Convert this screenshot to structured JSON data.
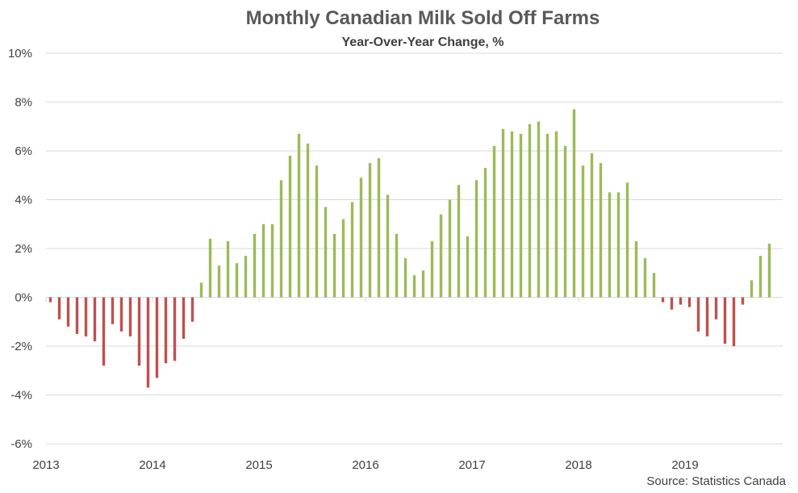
{
  "colors": {
    "positive": "#9BBB59",
    "negative": "#C0504D",
    "grid": "#D9D9D9",
    "text": "#404040"
  },
  "source": "Source: Statistics Canada",
  "chart_data": {
    "type": "bar",
    "title": "Monthly Canadian Milk Sold Off Farms",
    "subtitle": "Year-Over-Year Change, %",
    "xlabel": "",
    "ylabel": "",
    "ylim": [
      -6,
      10
    ],
    "y_ticks": [
      -6,
      -4,
      -2,
      0,
      2,
      4,
      6,
      8,
      10
    ],
    "y_tick_labels": [
      "-6%",
      "-4%",
      "-2%",
      "0%",
      "2%",
      "4%",
      "6%",
      "8%",
      "10%"
    ],
    "x_tick_labels": [
      "2013",
      "2014",
      "2015",
      "2016",
      "2017",
      "2018",
      "2019"
    ],
    "grid": true,
    "legend": "none",
    "categories": [
      "2013-01",
      "2013-02",
      "2013-03",
      "2013-04",
      "2013-05",
      "2013-06",
      "2013-07",
      "2013-08",
      "2013-09",
      "2013-10",
      "2013-11",
      "2013-12",
      "2014-01",
      "2014-02",
      "2014-03",
      "2014-04",
      "2014-05",
      "2014-06",
      "2014-07",
      "2014-08",
      "2014-09",
      "2014-10",
      "2014-11",
      "2014-12",
      "2015-01",
      "2015-02",
      "2015-03",
      "2015-04",
      "2015-05",
      "2015-06",
      "2015-07",
      "2015-08",
      "2015-09",
      "2015-10",
      "2015-11",
      "2015-12",
      "2016-01",
      "2016-02",
      "2016-03",
      "2016-04",
      "2016-05",
      "2016-06",
      "2016-07",
      "2016-08",
      "2016-09",
      "2016-10",
      "2016-11",
      "2016-12",
      "2017-01",
      "2017-02",
      "2017-03",
      "2017-04",
      "2017-05",
      "2017-06",
      "2017-07",
      "2017-08",
      "2017-09",
      "2017-10",
      "2017-11",
      "2017-12",
      "2018-01",
      "2018-02",
      "2018-03",
      "2018-04",
      "2018-05",
      "2018-06",
      "2018-07",
      "2018-08",
      "2018-09",
      "2018-10",
      "2018-11",
      "2018-12",
      "2019-01",
      "2019-02",
      "2019-03",
      "2019-04",
      "2019-05",
      "2019-06",
      "2019-07",
      "2019-08",
      "2019-09",
      "2019-10",
      "2019-11"
    ],
    "values": [
      -0.2,
      -0.9,
      -1.2,
      -1.5,
      -1.6,
      -1.8,
      -2.8,
      -1.1,
      -1.4,
      -1.6,
      -2.8,
      -3.7,
      -3.3,
      -2.7,
      -2.6,
      -1.7,
      -1.0,
      0.6,
      2.4,
      1.3,
      2.3,
      1.4,
      1.7,
      2.6,
      3.0,
      3.0,
      4.8,
      5.8,
      6.7,
      6.3,
      5.4,
      3.7,
      2.6,
      3.2,
      3.9,
      4.9,
      5.5,
      5.7,
      4.2,
      2.6,
      1.6,
      0.9,
      1.1,
      2.3,
      3.4,
      4.0,
      4.6,
      2.5,
      4.8,
      5.3,
      6.2,
      6.9,
      6.8,
      6.7,
      7.1,
      7.2,
      6.7,
      6.8,
      6.2,
      7.7,
      5.4,
      5.9,
      5.5,
      4.3,
      4.3,
      4.7,
      2.3,
      1.6,
      1.0,
      -0.2,
      -0.5,
      -0.3,
      -0.4,
      -1.4,
      -1.6,
      -0.9,
      -1.9,
      -2.0,
      -0.3,
      0.7,
      1.7,
      2.2,
      null
    ]
  }
}
